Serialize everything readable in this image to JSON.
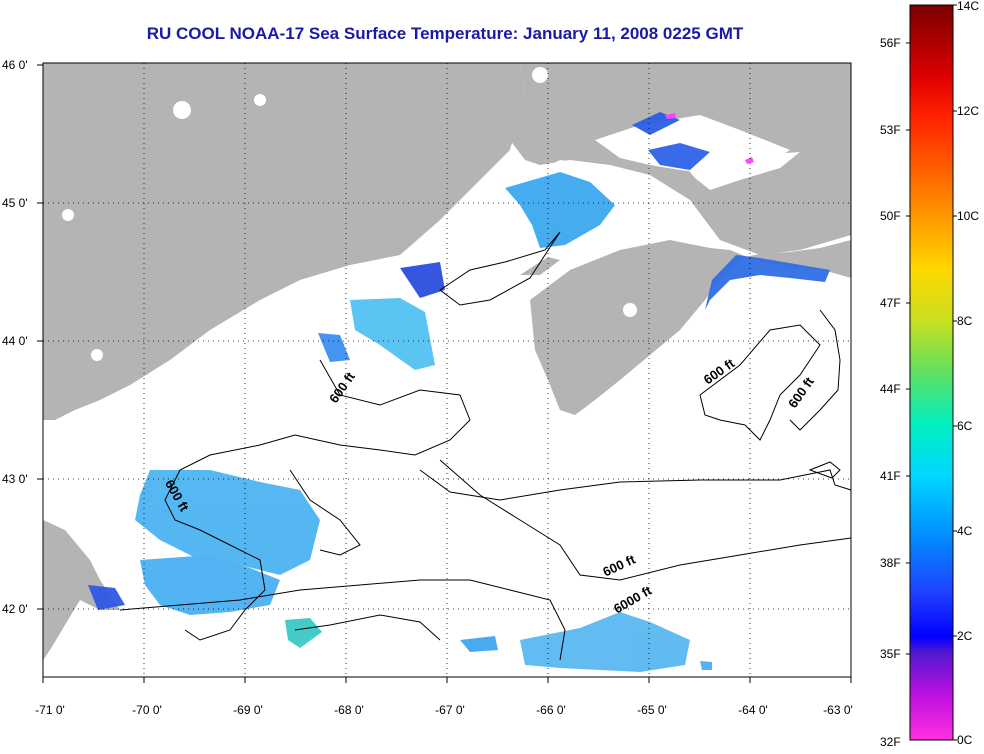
{
  "title": "RU COOL  NOAA-17  Sea Surface Temperature:  January 11, 2008 0225 GMT",
  "map": {
    "land_color": "#b4b4b4",
    "water_color": "#ffffff",
    "x_ticks": [
      "-71 0'",
      "-70 0'",
      "-69 0'",
      "-68 0'",
      "-67 0'",
      "-66 0'",
      "-65 0'",
      "-64 0'",
      "-63 0'"
    ],
    "y_ticks": [
      "46 0'",
      "45 0'",
      "44 0'",
      "43 0'",
      "42 0'"
    ],
    "depth_labels": [
      "600 ft",
      "600 ft",
      "600 ft",
      "600 ft",
      "600 ft",
      "6000 ft"
    ]
  },
  "colorbar": {
    "fahrenheit_labels": [
      "56F",
      "53F",
      "50F",
      "47F",
      "44F",
      "41F",
      "38F",
      "35F",
      "32F"
    ],
    "celsius_labels": [
      "14C",
      "12C",
      "10C",
      "8C",
      "6C",
      "4C",
      "2C",
      "0C"
    ],
    "colors": [
      "#8b0000",
      "#ff0000",
      "#ff8c00",
      "#ffd700",
      "#9acd32",
      "#00fa9a",
      "#00e5ff",
      "#00bfff",
      "#1e90ff",
      "#0000ff",
      "#8a2be2",
      "#ff00ff"
    ]
  }
}
